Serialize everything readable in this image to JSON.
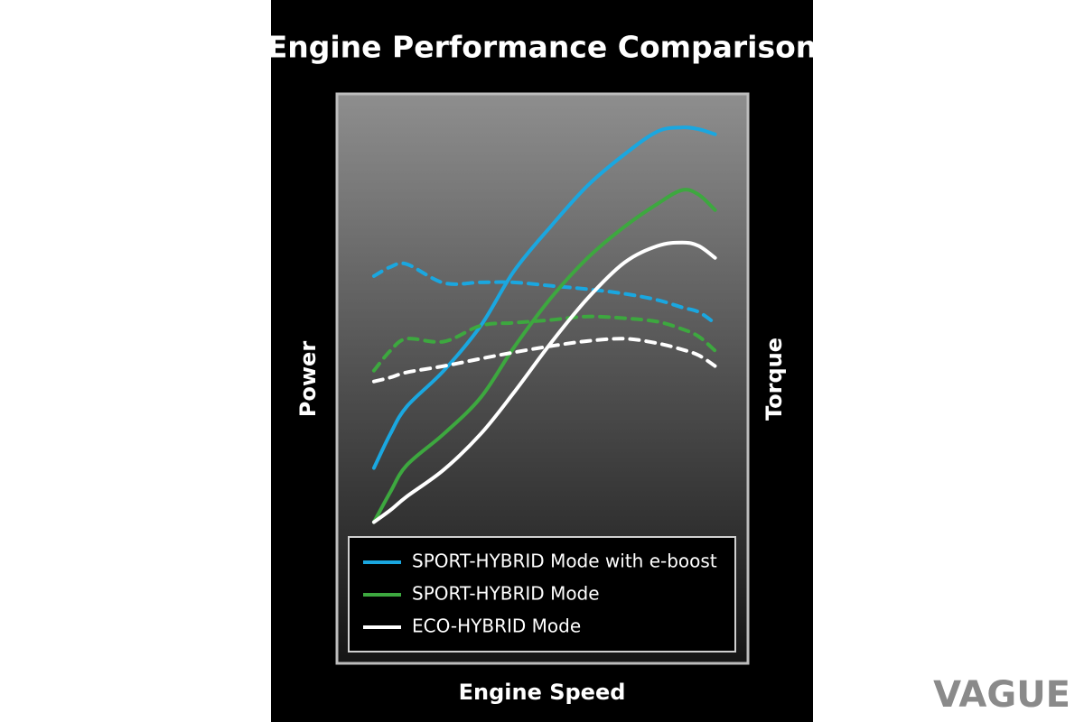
{
  "chart_data": {
    "type": "line",
    "title": "Engine Performance Comparison",
    "xlabel": "Engine Speed",
    "ylabel": "Power",
    "y2label": "Torque",
    "watermark": "VAGUE",
    "x": [
      9,
      13,
      17,
      26,
      35,
      43,
      52,
      61,
      70,
      78,
      84,
      88,
      92
    ],
    "xlim": [
      0,
      100
    ],
    "ylim": [
      0,
      100
    ],
    "series": [
      {
        "name": "SPORT-HYBRID Mode with e-boost",
        "color": "#1aa7e0",
        "values": [
          34.3,
          40.3,
          45.1,
          51.4,
          59.3,
          68.8,
          76.7,
          83.9,
          89.4,
          93.4,
          94.1,
          93.8,
          92.9
        ],
        "torque_values": [
          68.0,
          69.6,
          70.1,
          66.8,
          66.9,
          66.9,
          66.3,
          65.7,
          64.9,
          63.8,
          62.5,
          61.7,
          59.7
        ]
      },
      {
        "name": "SPORT-HYBRID Mode",
        "color": "#3da83f",
        "values": [
          24.8,
          30.1,
          34.8,
          40.3,
          46.7,
          55.4,
          64.1,
          71.2,
          76.7,
          80.7,
          83.1,
          82.3,
          79.6
        ],
        "torque_values": [
          51.4,
          54.9,
          57.0,
          56.5,
          59.3,
          59.8,
          60.3,
          60.9,
          60.6,
          60.0,
          58.7,
          57.4,
          54.9
        ]
      },
      {
        "name": "ECO-HYBRID Mode",
        "color": "#ffffff",
        "values": [
          24.8,
          26.9,
          29.3,
          34.0,
          40.3,
          47.5,
          56.2,
          64.1,
          70.4,
          73.3,
          73.9,
          73.3,
          71.2
        ],
        "torque_values": [
          49.5,
          50.2,
          51.1,
          52.2,
          53.5,
          54.6,
          55.7,
          56.6,
          57.0,
          56.2,
          55.1,
          54.1,
          52.2
        ]
      }
    ]
  }
}
